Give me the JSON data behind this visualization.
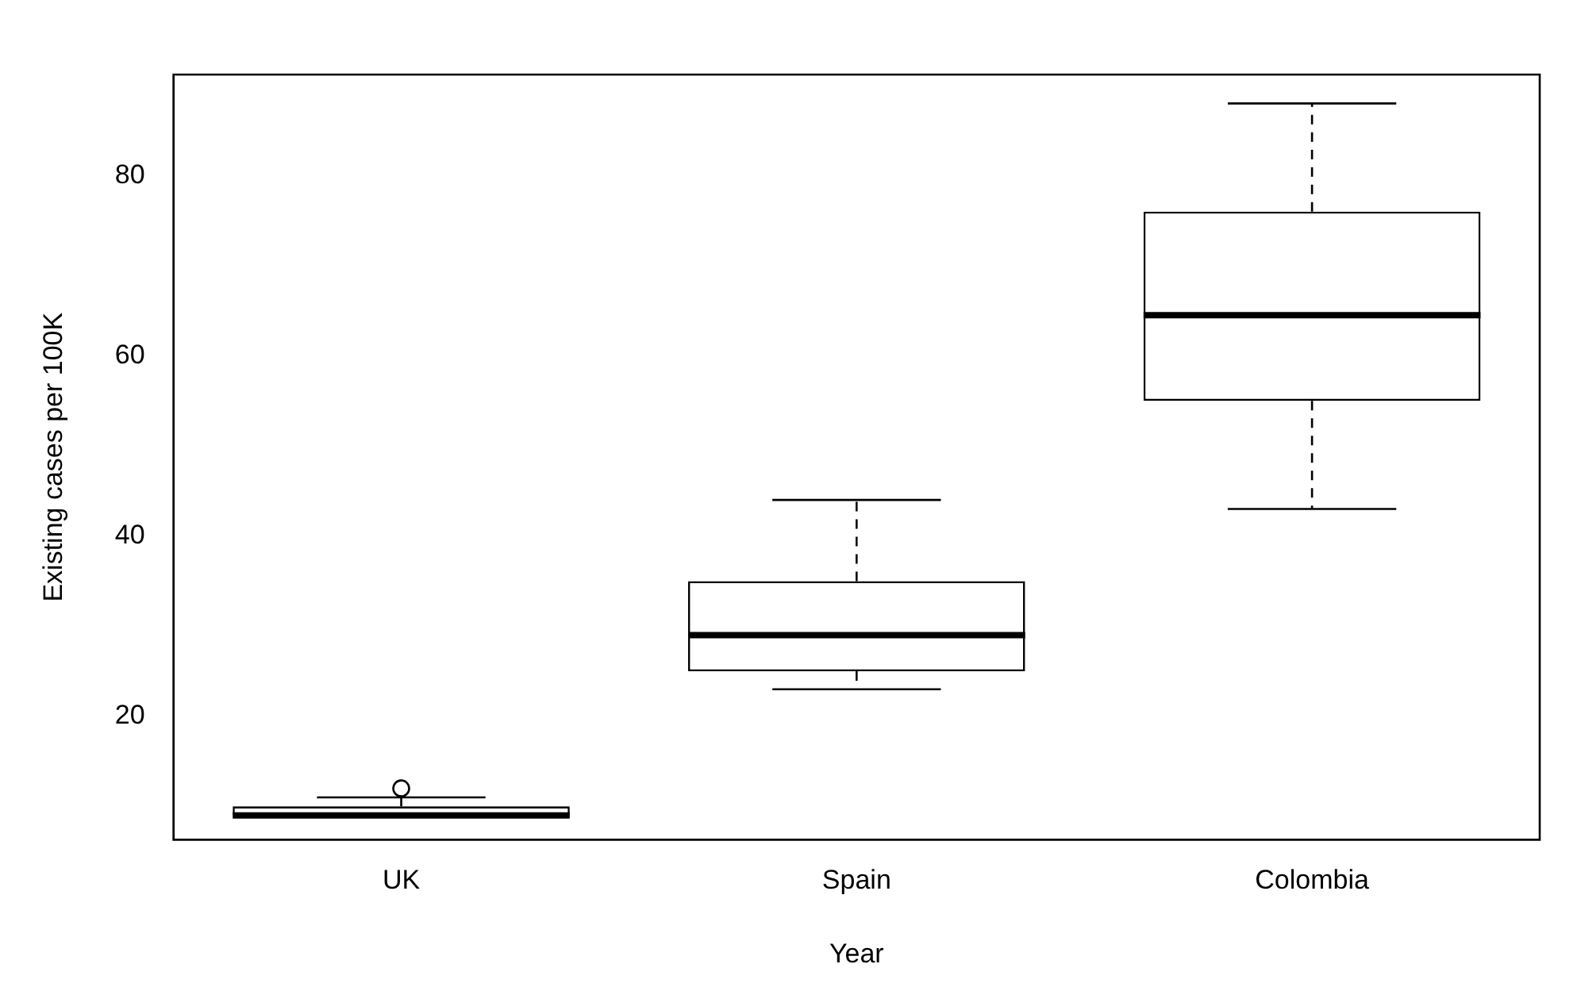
{
  "chart_data": {
    "type": "box",
    "xlabel": "Year",
    "ylabel": "Existing cases per 100K",
    "categories": [
      "UK",
      "Spain",
      "Colombia"
    ],
    "boxes": [
      {
        "low": 9,
        "q1": 9,
        "median": 9,
        "q3": 10,
        "high": 11,
        "outliers": [
          12
        ]
      },
      {
        "low": 23,
        "q1": 25,
        "median": 29,
        "q3": 35,
        "high": 44
      },
      {
        "low": 43,
        "q1": 55,
        "median": 64.5,
        "q3": 76,
        "high": 88
      }
    ],
    "color": "#000000",
    "ylim": [
      6.3,
      91.2
    ],
    "yticks": [
      20,
      40,
      60,
      80
    ],
    "grid": false,
    "legend": false
  }
}
